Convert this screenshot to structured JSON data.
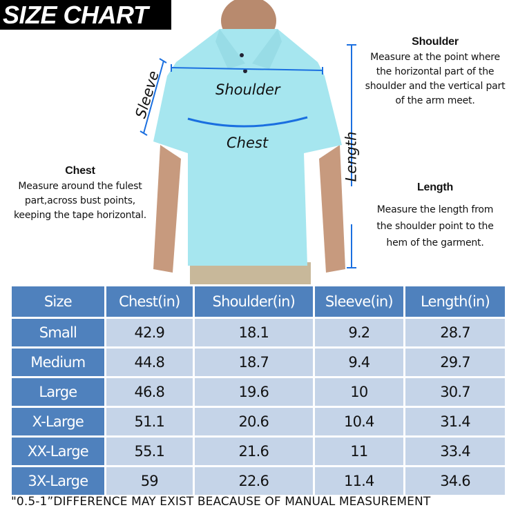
{
  "title": "SIZE CHART",
  "figure_labels": {
    "sleeve": "Sleeve",
    "shoulder": "Shoulder",
    "chest": "Chest",
    "length": "Length"
  },
  "descriptions": {
    "shoulder": {
      "heading": "Shoulder",
      "lines": [
        "Measure at the point where",
        "the horizontal part of the",
        "shoulder and the vertical part",
        "of the arm meet."
      ]
    },
    "chest": {
      "heading": "Chest",
      "lines": [
        "Measure around the fulest",
        "part,across bust points,",
        "keeping the tape horizontal."
      ]
    },
    "length": {
      "heading": "Length",
      "lines": [
        "Measure the length from",
        "the shoulder point to the",
        "hem of the garment."
      ]
    }
  },
  "colors": {
    "header": "#4f81bd",
    "cell": "#c5d4e8",
    "shirt": "#a6e6ef",
    "measure_line": "#1a6fe0"
  },
  "table": {
    "headers": [
      "Size",
      "Chest(in)",
      "Shoulder(in)",
      "Sleeve(in)",
      "Length(in)"
    ],
    "rows": [
      [
        "Small",
        "42.9",
        "18.1",
        "9.2",
        "28.7"
      ],
      [
        "Medium",
        "44.8",
        "18.7",
        "9.4",
        "29.7"
      ],
      [
        "Large",
        "46.8",
        "19.6",
        "10",
        "30.7"
      ],
      [
        "X-Large",
        "51.1",
        "20.6",
        "10.4",
        "31.4"
      ],
      [
        "XX-Large",
        "55.1",
        "21.6",
        "11",
        "33.4"
      ],
      [
        "3X-Large",
        "59",
        "22.6",
        "11.4",
        "34.6"
      ]
    ]
  },
  "note": "\"0.5-1”DIFFERENCE MAY EXIST BEACAUSE OF MANUAL MEASUREMENT"
}
